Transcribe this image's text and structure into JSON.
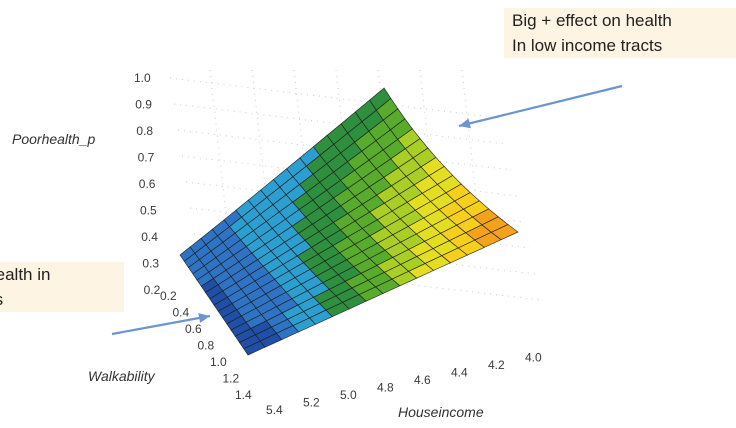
{
  "chart_data": {
    "type": "surface-3d",
    "zlabel": "Poorhealth_p",
    "xlabel": "Walkability",
    "ylabel": "Houseincome",
    "z_ticks": [
      "1.0",
      "0.9",
      "0.8",
      "0.7",
      "0.6",
      "0.5",
      "0.4",
      "0.3",
      "0.2"
    ],
    "walk_ticks": [
      "0.2",
      "0.4",
      "0.6",
      "0.8",
      "1.0",
      "1.2",
      "1.4"
    ],
    "income_ticks": [
      "5.4",
      "5.2",
      "5.0",
      "4.8",
      "4.6",
      "4.4",
      "4.2",
      "4.0"
    ],
    "zlim": [
      0.2,
      1.0
    ],
    "walk_range": [
      0.2,
      1.4
    ],
    "income_range": [
      4.0,
      5.4
    ],
    "surface_corners": {
      "walk_0.2_income_5.4": 0.3,
      "walk_1.4_income_5.4": 0.2,
      "walk_0.2_income_4.0": 0.5,
      "walk_1.4_income_4.0": 0.95
    },
    "colormap": [
      "#1f4fa6",
      "#2f74c4",
      "#2c9ed0",
      "#2e8f3e",
      "#58ab2c",
      "#a9cf26",
      "#e4de22",
      "#f5cf1b",
      "#f3a21c",
      "#e97d1c"
    ],
    "grid_resolution": [
      16,
      16
    ],
    "annotations": [
      {
        "lines": [
          "Big + effect on health",
          "In low income tracts"
        ]
      },
      {
        "lines": [
          "... on health in",
          "... tracts"
        ]
      }
    ]
  },
  "callouts": {
    "top": {
      "line1": "Big + effect on health",
      "line2": "In low income tracts"
    },
    "left": {
      "line1": "n health in",
      "line2": "acts"
    }
  },
  "arrow_color": "#6a95d0"
}
